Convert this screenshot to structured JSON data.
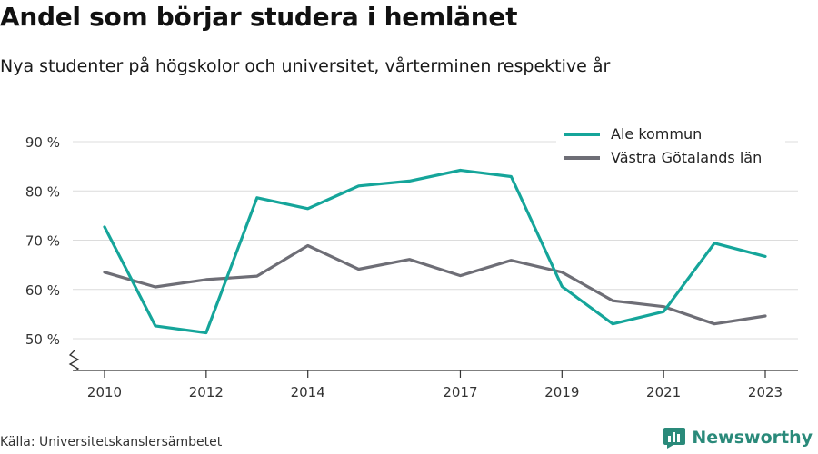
{
  "header": {
    "title": "Andel som börjar studera i hemlänet",
    "subtitle": "Nya studenter på högskolor och universitet, vårterminen respektive år"
  },
  "footer": {
    "source": "Källa: Universitetskanslersämbetet",
    "brand": "Newsworthy"
  },
  "chart_data": {
    "type": "line",
    "x": [
      2010,
      2011,
      2012,
      2013,
      2014,
      2015,
      2016,
      2017,
      2018,
      2019,
      2020,
      2021,
      2022,
      2023
    ],
    "x_tick_labels": [
      "2010",
      "2012",
      "2014",
      "2017",
      "2019",
      "2021",
      "2023"
    ],
    "x_tick_values": [
      2010,
      2012,
      2014,
      2017,
      2019,
      2021,
      2023
    ],
    "xlim": [
      2010,
      2023
    ],
    "ylim": [
      50,
      90
    ],
    "y_ticks": [
      50,
      60,
      70,
      80,
      90
    ],
    "y_tick_labels": [
      "50 %",
      "60 %",
      "70 %",
      "80 %",
      "90 %"
    ],
    "y_axis_broken": true,
    "grid": "horizontal",
    "legend_position": "top-right",
    "series": [
      {
        "name": "Ale kommun",
        "color": "#15a59a",
        "values": [
          72.7,
          52.6,
          51.2,
          78.6,
          76.4,
          81.0,
          82.0,
          84.2,
          82.9,
          60.6,
          53.0,
          55.5,
          69.4,
          66.7
        ]
      },
      {
        "name": "Västra Götalands län",
        "color": "#6e6e76",
        "values": [
          63.5,
          60.5,
          62.0,
          62.7,
          68.9,
          64.1,
          66.1,
          62.8,
          65.9,
          63.5,
          57.7,
          56.5,
          53.0,
          54.6
        ]
      }
    ]
  }
}
